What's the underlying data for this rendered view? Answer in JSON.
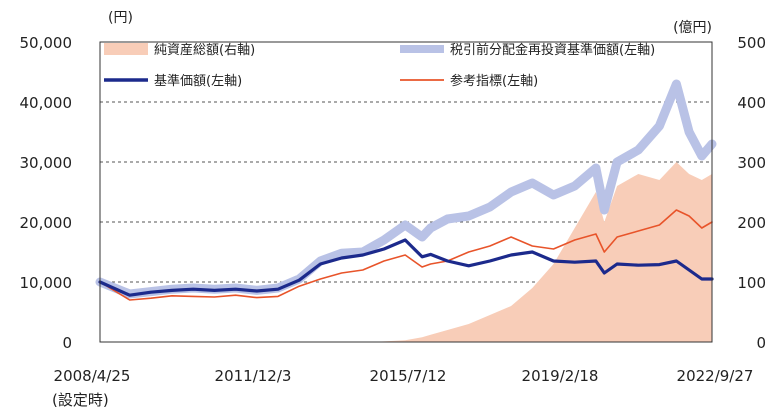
{
  "chart_data": {
    "type": "line",
    "left_unit": "(円)",
    "right_unit": "(億円)",
    "left_ticks": [
      "50,000",
      "40,000",
      "30,000",
      "20,000",
      "10,000",
      "0"
    ],
    "right_ticks": [
      "500",
      "400",
      "300",
      "200",
      "100",
      "0"
    ],
    "x_ticks": [
      "2008/4/25",
      "2011/12/3",
      "2015/7/12",
      "2019/2/18",
      "2022/9/27"
    ],
    "x_sub_label": "(設定時)",
    "ylim_left": [
      0,
      50000
    ],
    "ylim_right": [
      0,
      500
    ],
    "grid": true,
    "legend_position": "top",
    "x": [
      2008.3,
      2009.0,
      2009.5,
      2010.0,
      2010.5,
      2011.0,
      2011.5,
      2012.0,
      2012.5,
      2013.0,
      2013.5,
      2014.0,
      2014.5,
      2015.0,
      2015.5,
      2015.9,
      2016.1,
      2016.5,
      2017.0,
      2017.5,
      2018.0,
      2018.5,
      2019.0,
      2019.5,
      2020.0,
      2020.2,
      2020.5,
      2021.0,
      2021.5,
      2021.9,
      2022.2,
      2022.5,
      2022.74
    ],
    "series": [
      {
        "name": "純資産総額(右軸)",
        "axis": "right",
        "color": "#f8cdb8",
        "values": [
          0,
          0,
          0,
          0,
          0,
          0,
          0,
          0,
          0,
          0,
          0,
          0,
          0,
          1,
          3,
          8,
          12,
          20,
          30,
          45,
          60,
          90,
          130,
          190,
          250,
          200,
          260,
          280,
          270,
          300,
          280,
          270,
          280
        ]
      },
      {
        "name": "税引前分配金再投資基準価額(左軸)",
        "axis": "left",
        "color": "#b9c2e6",
        "values": [
          10000,
          8000,
          8400,
          8800,
          9000,
          8800,
          9000,
          8600,
          9000,
          10500,
          13500,
          14800,
          15000,
          17000,
          19500,
          17500,
          19000,
          20500,
          21000,
          22500,
          25000,
          26500,
          24500,
          26000,
          29000,
          22000,
          30000,
          32000,
          36000,
          43000,
          35000,
          31000,
          33000
        ]
      },
      {
        "name": "基準価額(左軸)",
        "axis": "left",
        "color": "#1c2a8c",
        "values": [
          10000,
          7800,
          8300,
          8600,
          8800,
          8600,
          8800,
          8500,
          8800,
          10300,
          13000,
          14000,
          14500,
          15500,
          17000,
          14200,
          14600,
          13500,
          12700,
          13500,
          14500,
          15000,
          13500,
          13300,
          13500,
          11500,
          13000,
          12800,
          12900,
          13500,
          12000,
          10500,
          10500
        ]
      },
      {
        "name": "参考指標(左軸)",
        "axis": "left",
        "color": "#e8542a",
        "values": [
          10000,
          7000,
          7300,
          7700,
          7600,
          7500,
          7800,
          7400,
          7600,
          9300,
          10500,
          11500,
          12000,
          13500,
          14500,
          12500,
          13000,
          13500,
          15000,
          16000,
          17500,
          16000,
          15500,
          17000,
          18000,
          15000,
          17500,
          18500,
          19500,
          22000,
          21000,
          19000,
          20000
        ]
      }
    ]
  }
}
